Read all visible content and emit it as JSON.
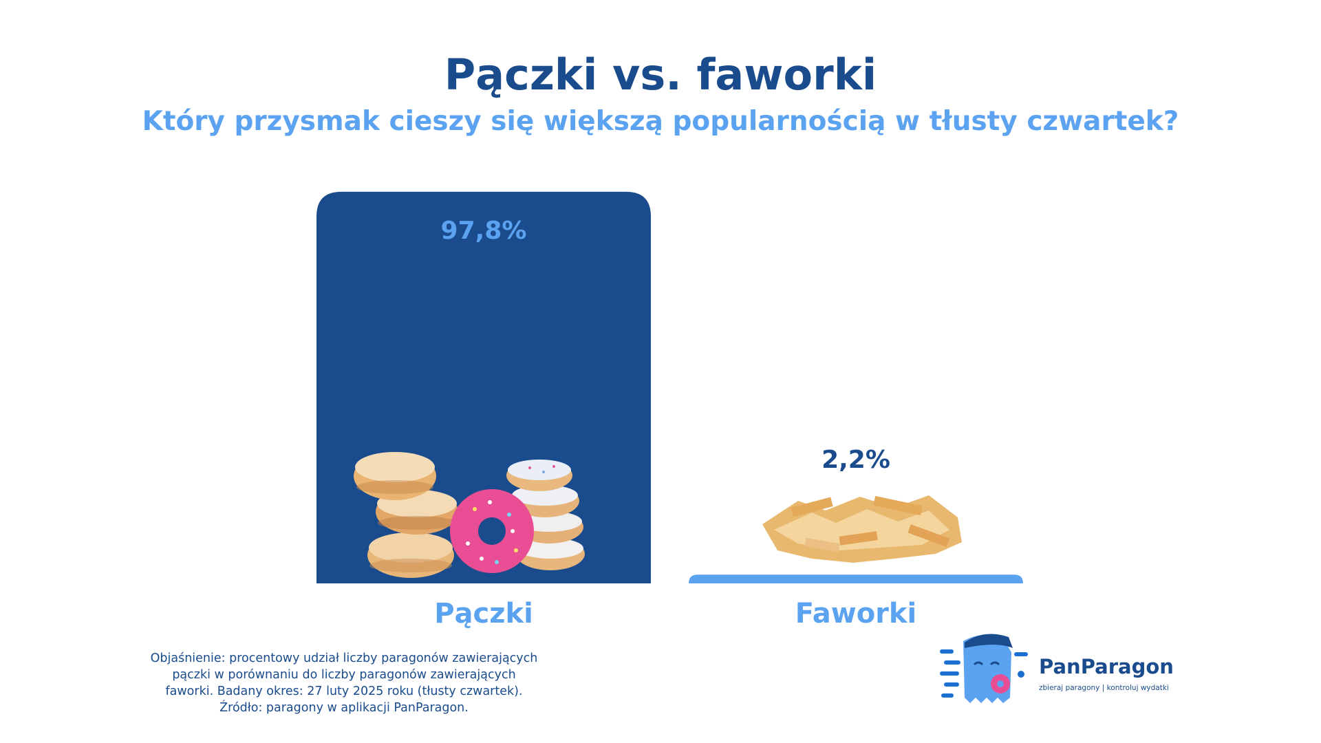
{
  "title": "Pączki vs. faworki",
  "subtitle": "Który przysmak cieszy się większą popularnością w tłusty czwartek?",
  "chart_data": {
    "type": "bar",
    "categories": [
      "Pączki",
      "Faworki"
    ],
    "values": [
      97.8,
      2.2
    ],
    "value_labels": [
      "97,8%",
      "2,2%"
    ],
    "unit": "%",
    "ylim": [
      0,
      100
    ],
    "grid": false,
    "colors": {
      "bar_primary": "#1a4b8c",
      "bar_secondary": "#5ba3f0",
      "value_label_on_bar": "#5ba3f0",
      "value_label_above_bar": "#1a4b8c",
      "category_label": "#5ba3f0"
    }
  },
  "images": {
    "bar_1": "donuts-stack-image",
    "bar_2": "faworki-pile-image"
  },
  "note": [
    "Objaśnienie: procentowy udział liczby paragonów zawierających",
    "pączki w porównaniu do liczby paragonów zawierających",
    "faworki. Badany okres: 27 luty 2025 roku (tłusty czwartek).",
    "Źródło: paragony w aplikacji PanParagon."
  ],
  "logo": {
    "name": "PanParagon",
    "tagline": "zbieraj paragony | kontroluj wydatki",
    "icon": "receipt-mascot-icon"
  }
}
